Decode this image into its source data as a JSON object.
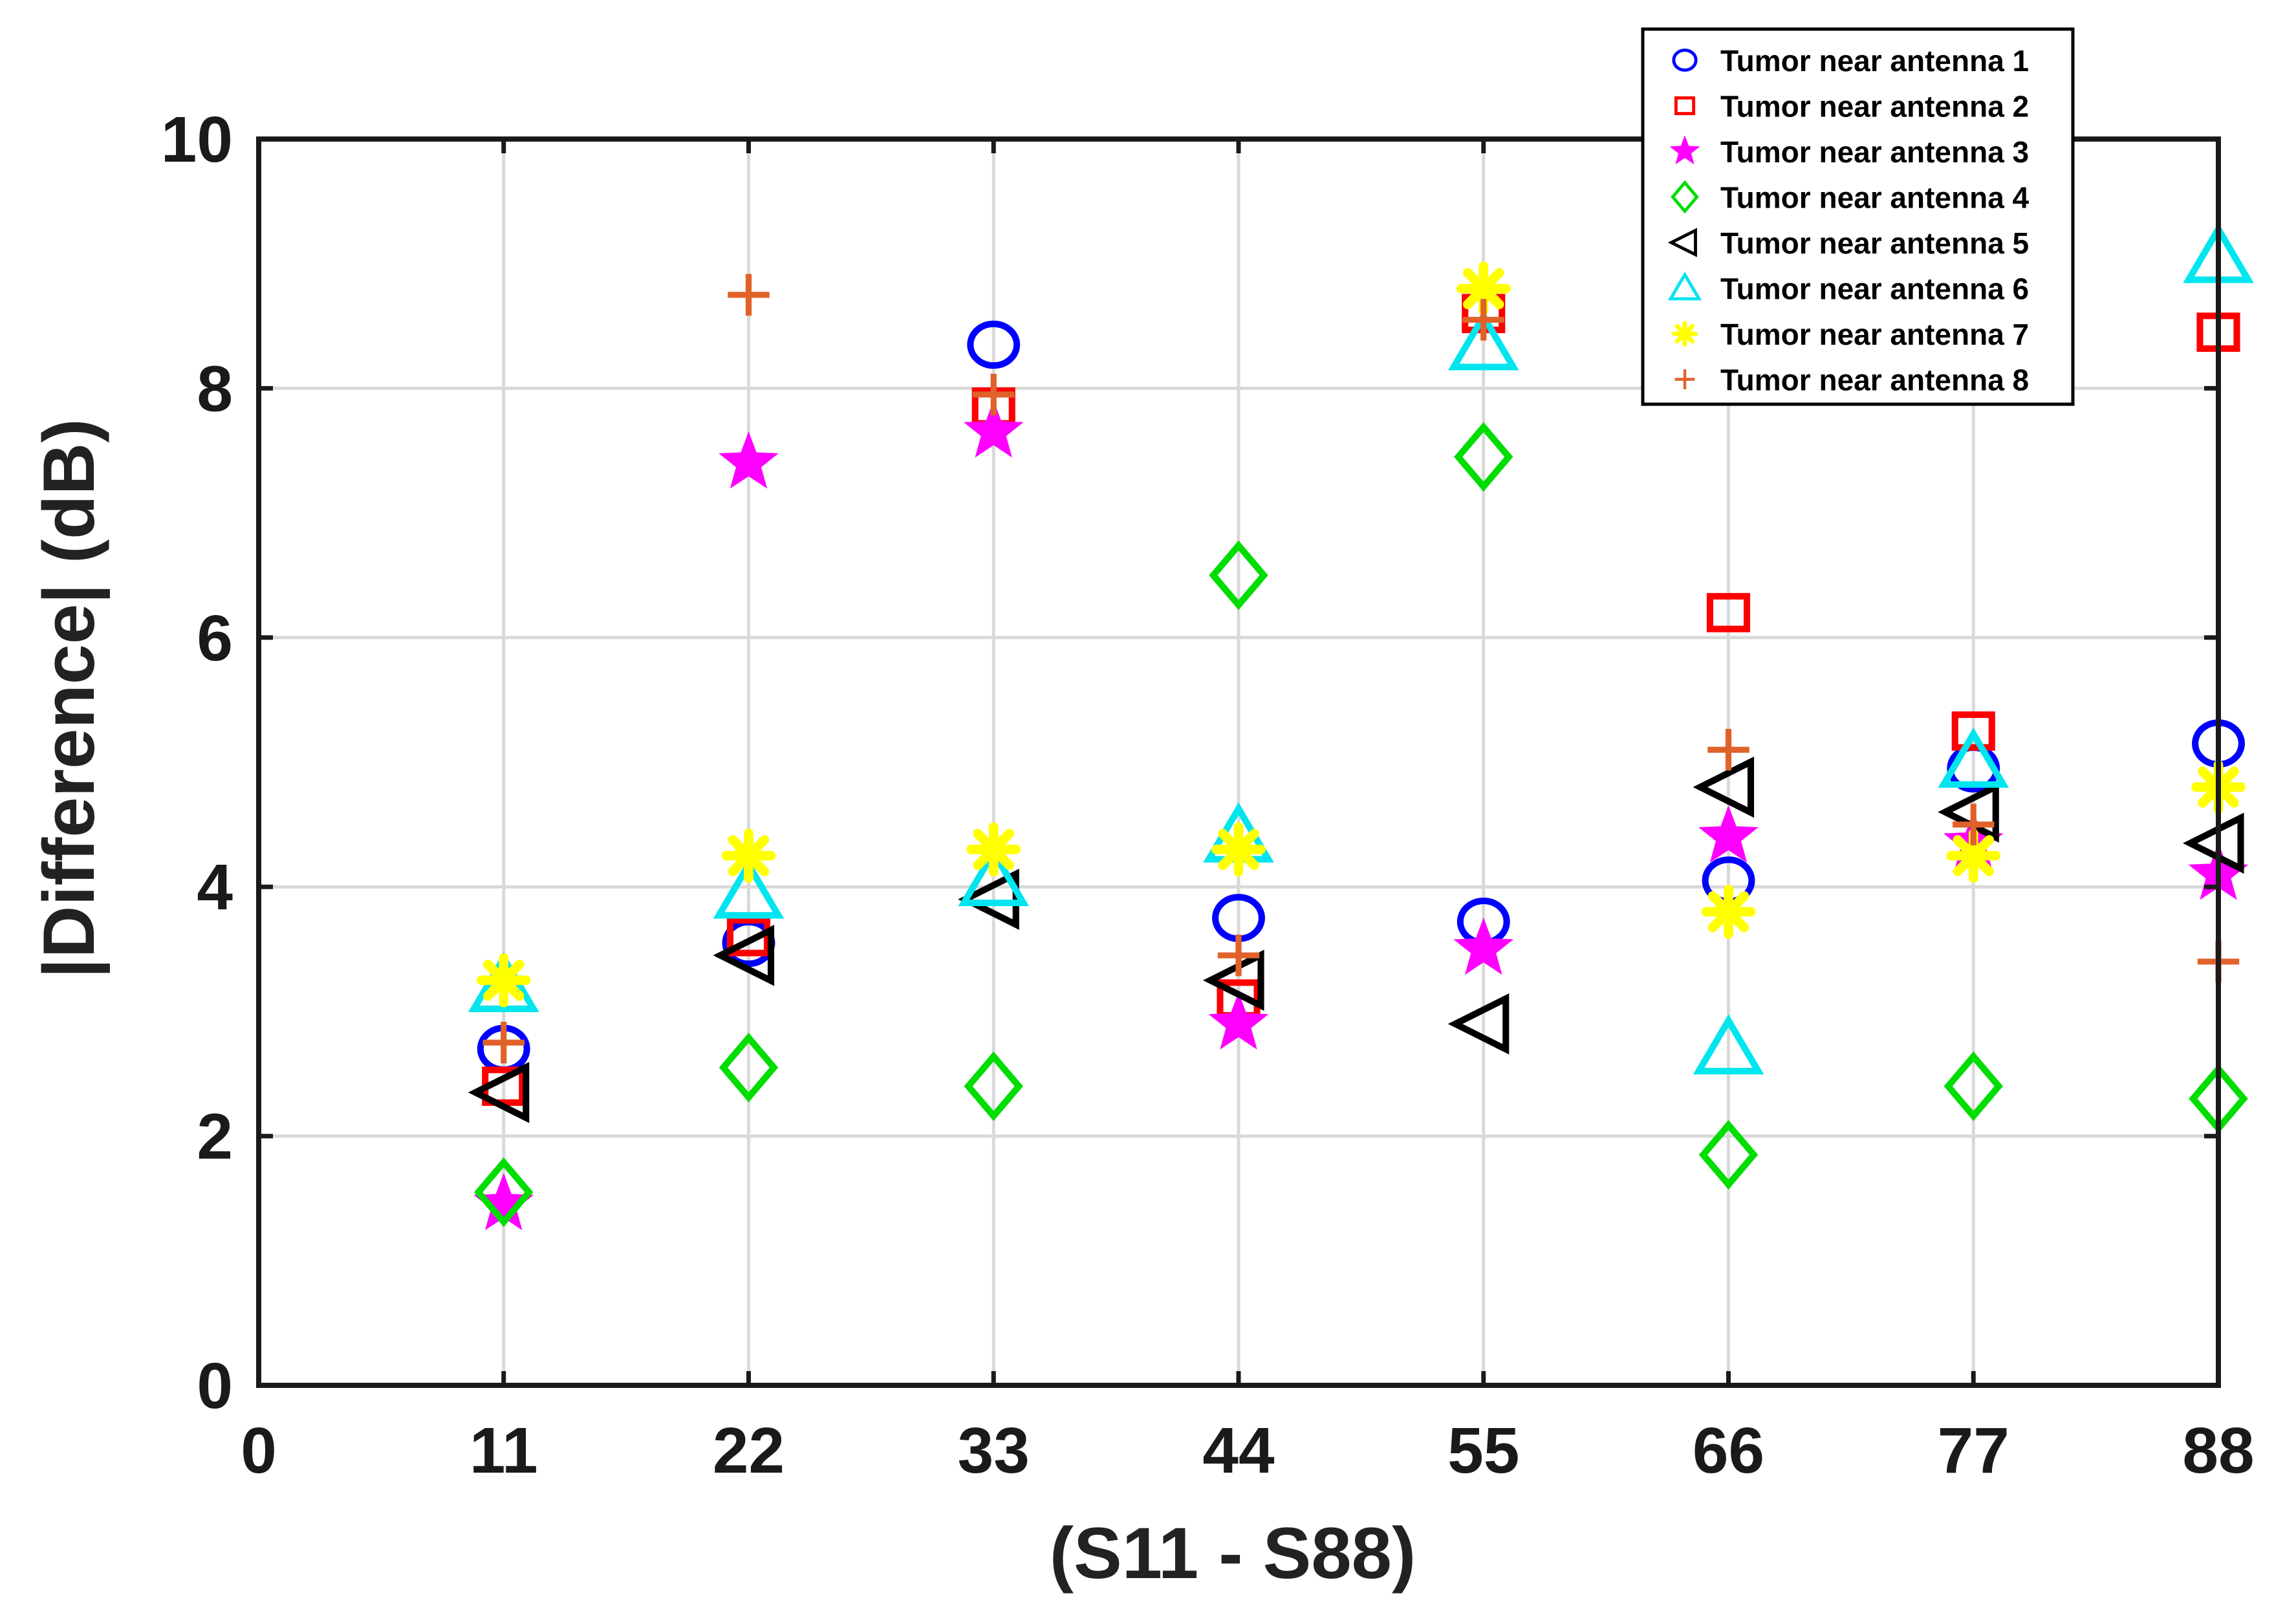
{
  "chart_data": {
    "type": "scatter",
    "title": "",
    "xlabel": "(S11 - S88)",
    "ylabel": "|Difference| (dB)",
    "xlim": [
      0,
      88
    ],
    "ylim": [
      0,
      10
    ],
    "x_ticks": [
      0,
      11,
      22,
      33,
      44,
      55,
      66,
      77,
      88
    ],
    "y_ticks": [
      0,
      2,
      4,
      6,
      8,
      10
    ],
    "grid": true,
    "legend_position": "top-right",
    "x": [
      11,
      22,
      33,
      44,
      55,
      66,
      77,
      88
    ],
    "series": [
      {
        "name": "Tumor near antenna 1",
        "marker": "circle",
        "color": "#0000ff",
        "values": [
          2.7,
          3.55,
          8.35,
          3.75,
          3.72,
          4.05,
          4.95,
          5.15
        ]
      },
      {
        "name": "Tumor near antenna 2",
        "marker": "square",
        "color": "#ff0000",
        "values": [
          2.4,
          3.6,
          7.85,
          3.1,
          8.6,
          6.2,
          5.25,
          8.45
        ]
      },
      {
        "name": "Tumor near antenna 3",
        "marker": "star",
        "color": "#ff00ff",
        "values": [
          1.45,
          7.4,
          7.65,
          2.9,
          3.5,
          4.4,
          4.35,
          4.1
        ]
      },
      {
        "name": "Tumor near antenna 4",
        "marker": "diamond",
        "color": "#00dd00",
        "values": [
          1.55,
          2.55,
          2.4,
          6.5,
          7.45,
          1.85,
          2.4,
          2.3
        ]
      },
      {
        "name": "Tumor near antenna 5",
        "marker": "triangle-left",
        "color": "#000000",
        "values": [
          2.35,
          3.45,
          3.9,
          3.25,
          2.9,
          4.8,
          4.6,
          4.35
        ]
      },
      {
        "name": "Tumor near antenna 6",
        "marker": "triangle-up",
        "color": "#00e5ee",
        "values": [
          3.2,
          3.95,
          4.05,
          4.4,
          8.35,
          2.7,
          5.0,
          9.05
        ]
      },
      {
        "name": "Tumor near antenna 7",
        "marker": "asterisk",
        "color": "#ffff00",
        "values": [
          3.25,
          4.25,
          4.3,
          4.3,
          8.8,
          3.8,
          4.25,
          4.8
        ]
      },
      {
        "name": "Tumor near antenna 8",
        "marker": "plus",
        "color": "#e0622a",
        "values": [
          2.75,
          8.75,
          7.95,
          3.45,
          8.55,
          5.1,
          4.5,
          3.4
        ]
      }
    ]
  }
}
